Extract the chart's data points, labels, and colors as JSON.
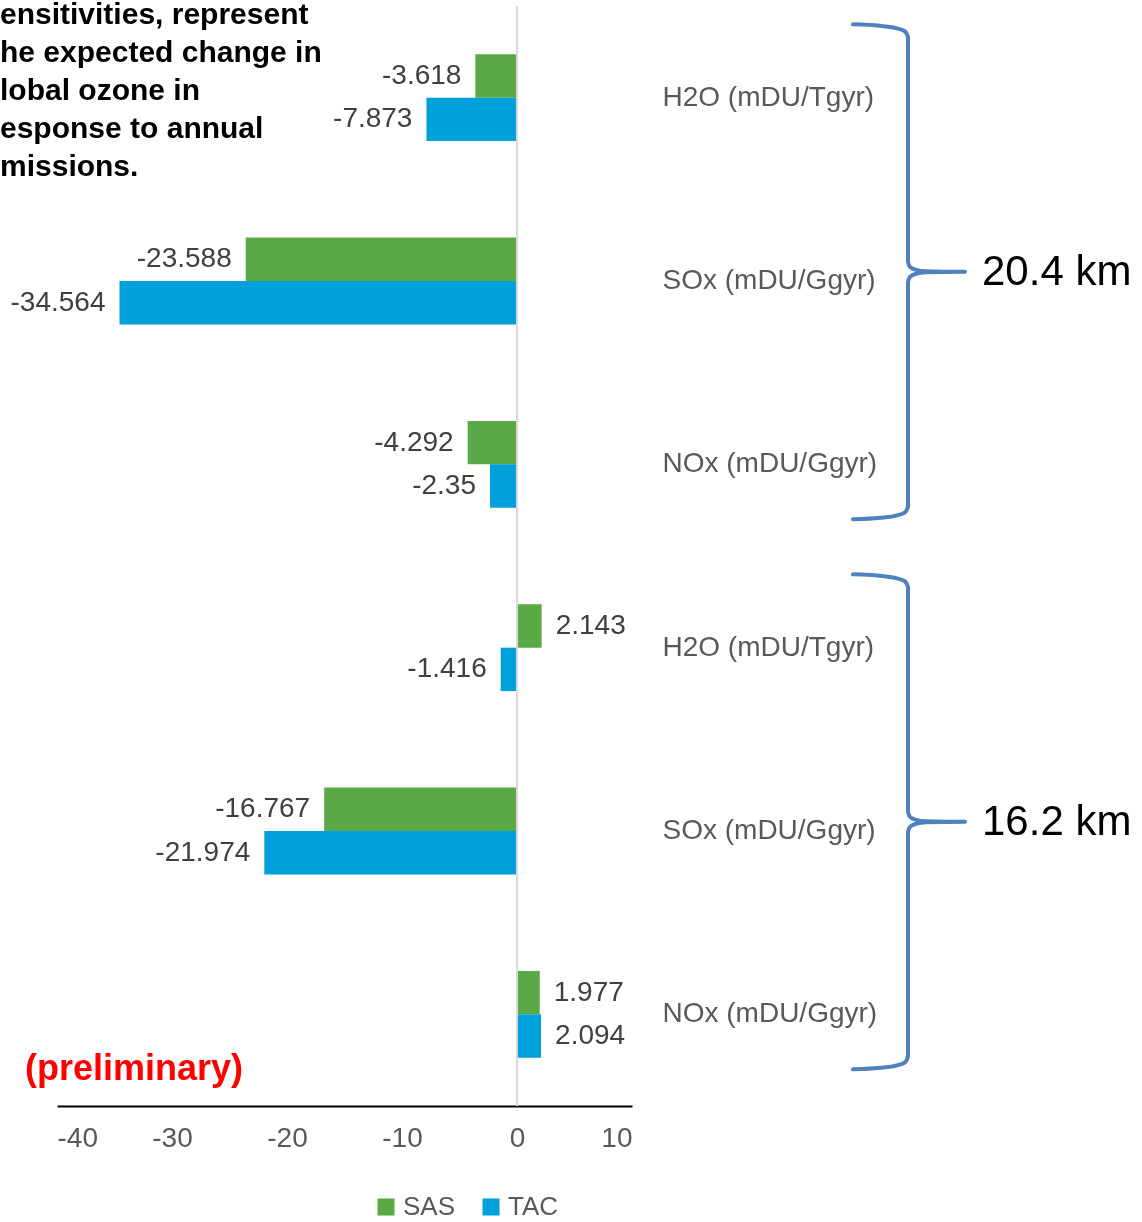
{
  "chart_data": {
    "type": "bar",
    "orientation": "horizontal",
    "categories": [
      "H2O (mDU/Tgyr)",
      "SOx (mDU/Ggyr)",
      "NOx (mDU/Ggyr)",
      "H2O (mDU/Tgyr)",
      "SOx (mDU/Ggyr)",
      "NOx (mDU/Ggyr)"
    ],
    "series": [
      {
        "name": "SAS",
        "color": "#5ba847",
        "values": [
          -3.618,
          -23.588,
          -4.292,
          2.143,
          -16.767,
          1.977
        ]
      },
      {
        "name": "TAC",
        "color": "#00a0da",
        "values": [
          -7.873,
          -34.564,
          -2.35,
          -1.416,
          -21.974,
          2.094
        ]
      }
    ],
    "xlim": [
      -40,
      10
    ],
    "xticks": [
      -40,
      -30,
      -20,
      -10,
      0,
      10
    ],
    "data_labels": true,
    "legend": "bottom",
    "ref_lines": [
      {
        "axis": "x",
        "value": 0,
        "color": "#d9d9d9"
      }
    ],
    "annotations": [
      "ensitivities, represent\nhe expected change in\nlobal ozone in\nesponse to annual\nmissions.",
      "(preliminary)",
      "20.4 km",
      "16.2 km"
    ]
  }
}
